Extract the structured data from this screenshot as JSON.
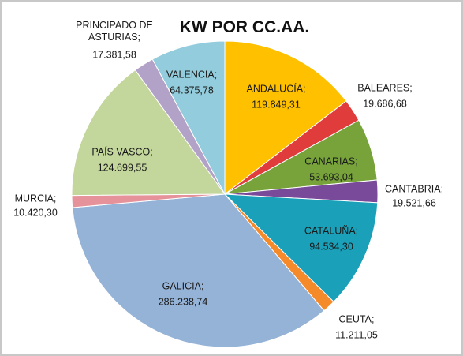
{
  "chart_data": {
    "type": "pie",
    "title": "KW POR CC.AA.",
    "categories": [
      "ANDALUCÍA;",
      "BALEARES;",
      "CANARIAS;",
      "CANTABRIA;",
      "CATALUÑA;",
      "CEUTA;",
      "GALICIA;",
      "MURCIA;",
      "PAÍS VASCO;",
      "PRINCIPADO DE ASTURIAS;",
      "VALENCIA;"
    ],
    "values": [
      119849.31,
      19686.68,
      53693.04,
      19521.66,
      94534.3,
      11211.05,
      286238.74,
      10420.3,
      124699.55,
      17381.58,
      64375.78
    ],
    "value_labels": [
      "119.849,31",
      "19.686,68",
      "53.693,04",
      "19.521,66",
      "94.534,30",
      "11.211,05",
      "286.238,74",
      "10.420,30",
      "124.699,55",
      "17.381,58",
      "64.375,78"
    ],
    "colors": [
      "#ffc000",
      "#e03c3c",
      "#77a33a",
      "#7a4a9a",
      "#1aa0b8",
      "#f58a2a",
      "#95b3d7",
      "#e6929a",
      "#c3d69b",
      "#b3a2c7",
      "#93cddd"
    ]
  }
}
